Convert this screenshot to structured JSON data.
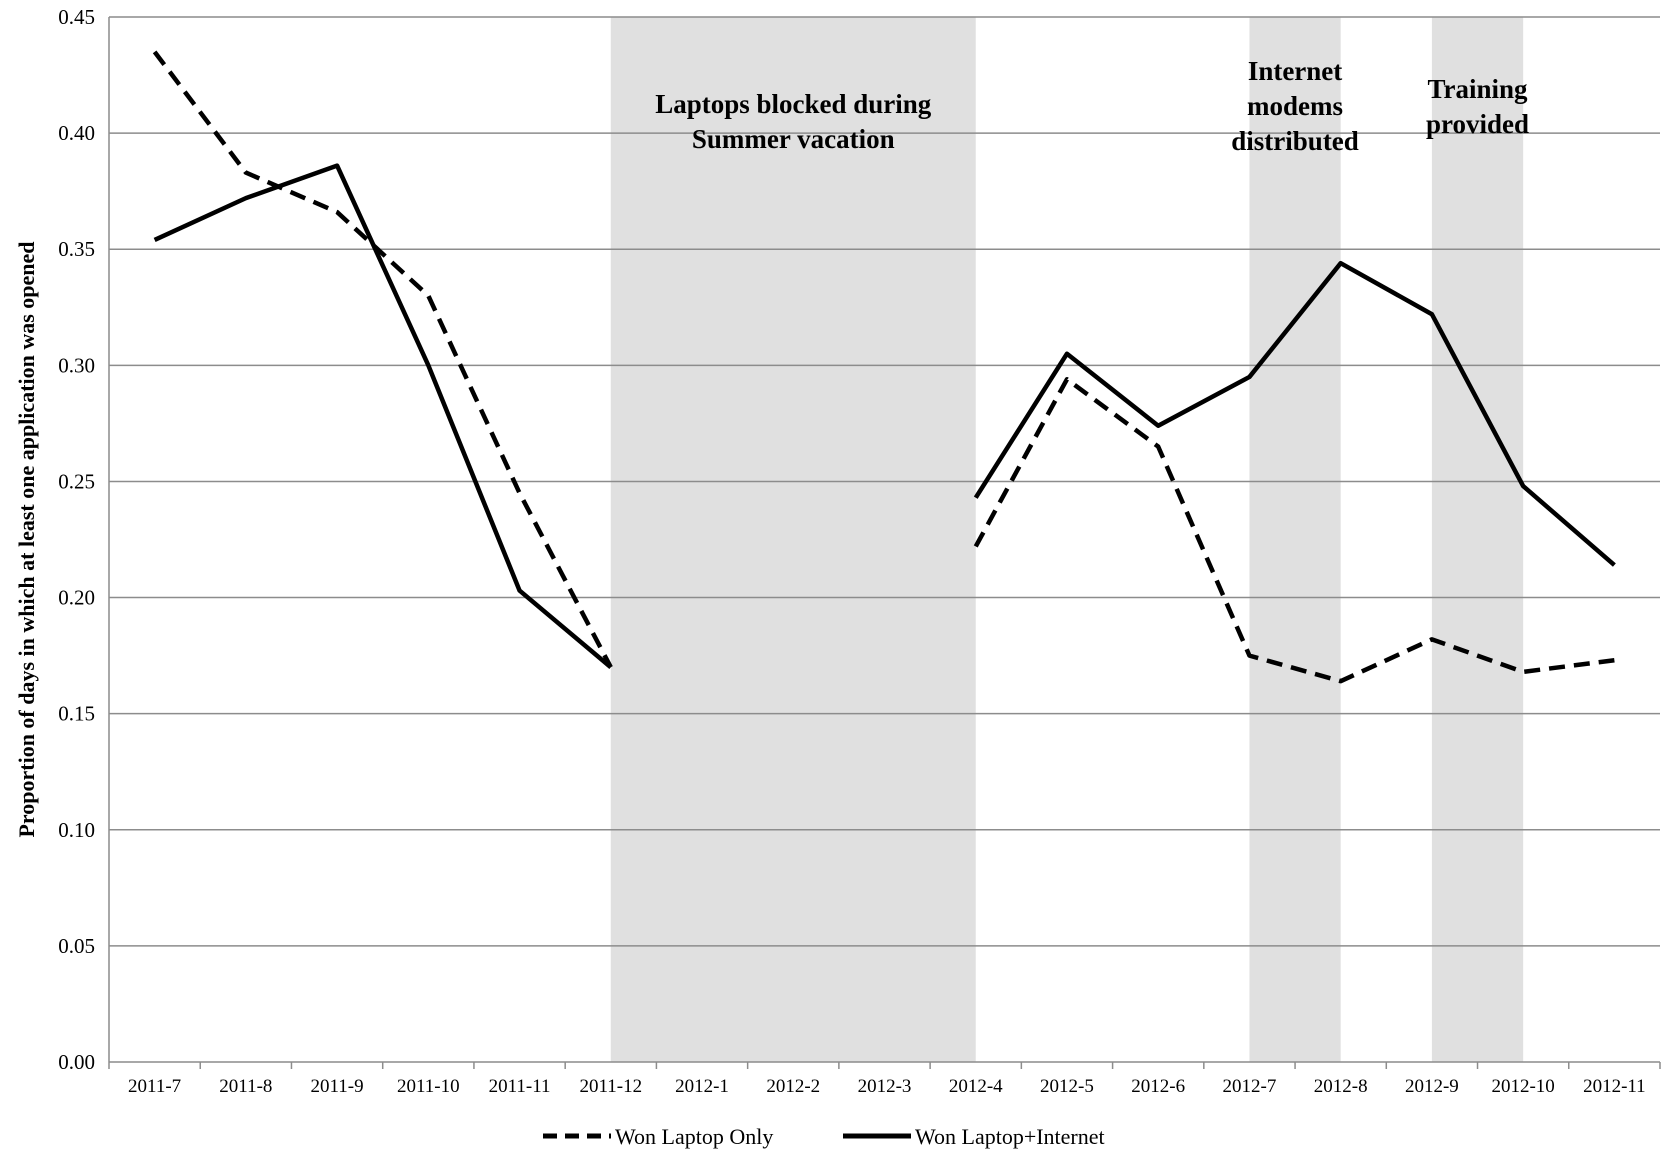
{
  "chart_data": {
    "type": "line",
    "title": "",
    "xlabel": "",
    "ylabel": "Proportion of days in which at least one application was opened",
    "ylim": [
      0,
      0.45
    ],
    "yticks": [
      "0.00",
      "0.05",
      "0.10",
      "0.15",
      "0.20",
      "0.25",
      "0.30",
      "0.35",
      "0.40",
      "0.45"
    ],
    "grid": "horizontal",
    "legend_position": "bottom",
    "categories": [
      "2011-7",
      "2011-8",
      "2011-9",
      "2011-10",
      "2011-11",
      "2011-12",
      "2012-1",
      "2012-2",
      "2012-3",
      "2012-4",
      "2012-5",
      "2012-6",
      "2012-7",
      "2012-8",
      "2012-9",
      "2012-10",
      "2012-11"
    ],
    "series": [
      {
        "name": "Won Laptop Only",
        "style": "dashed",
        "color": "#000000",
        "values": [
          0.435,
          0.383,
          0.366,
          0.33,
          0.245,
          0.17,
          null,
          null,
          null,
          0.222,
          0.294,
          0.265,
          0.175,
          0.164,
          0.182,
          0.168,
          0.173
        ]
      },
      {
        "name": "Won Laptop+Internet",
        "style": "solid",
        "color": "#000000",
        "values": [
          0.354,
          0.372,
          0.386,
          0.3,
          0.203,
          0.17,
          null,
          null,
          null,
          0.243,
          0.305,
          0.274,
          0.295,
          0.344,
          0.322,
          0.248,
          0.214
        ]
      }
    ],
    "shaded_regions": [
      {
        "from": "2011-12",
        "to": "2012-4",
        "label_lines": [
          "Laptops blocked during",
          "Summer vacation"
        ],
        "color": "#e0e0e0"
      },
      {
        "from": "2012-7",
        "to": "2012-8",
        "label_lines": [
          "Internet",
          "modems",
          "distributed"
        ],
        "color": "#e0e0e0"
      },
      {
        "from": "2012-9",
        "to": "2012-10",
        "label_lines": [
          "Training",
          "provided"
        ],
        "color": "#e0e0e0"
      }
    ]
  }
}
